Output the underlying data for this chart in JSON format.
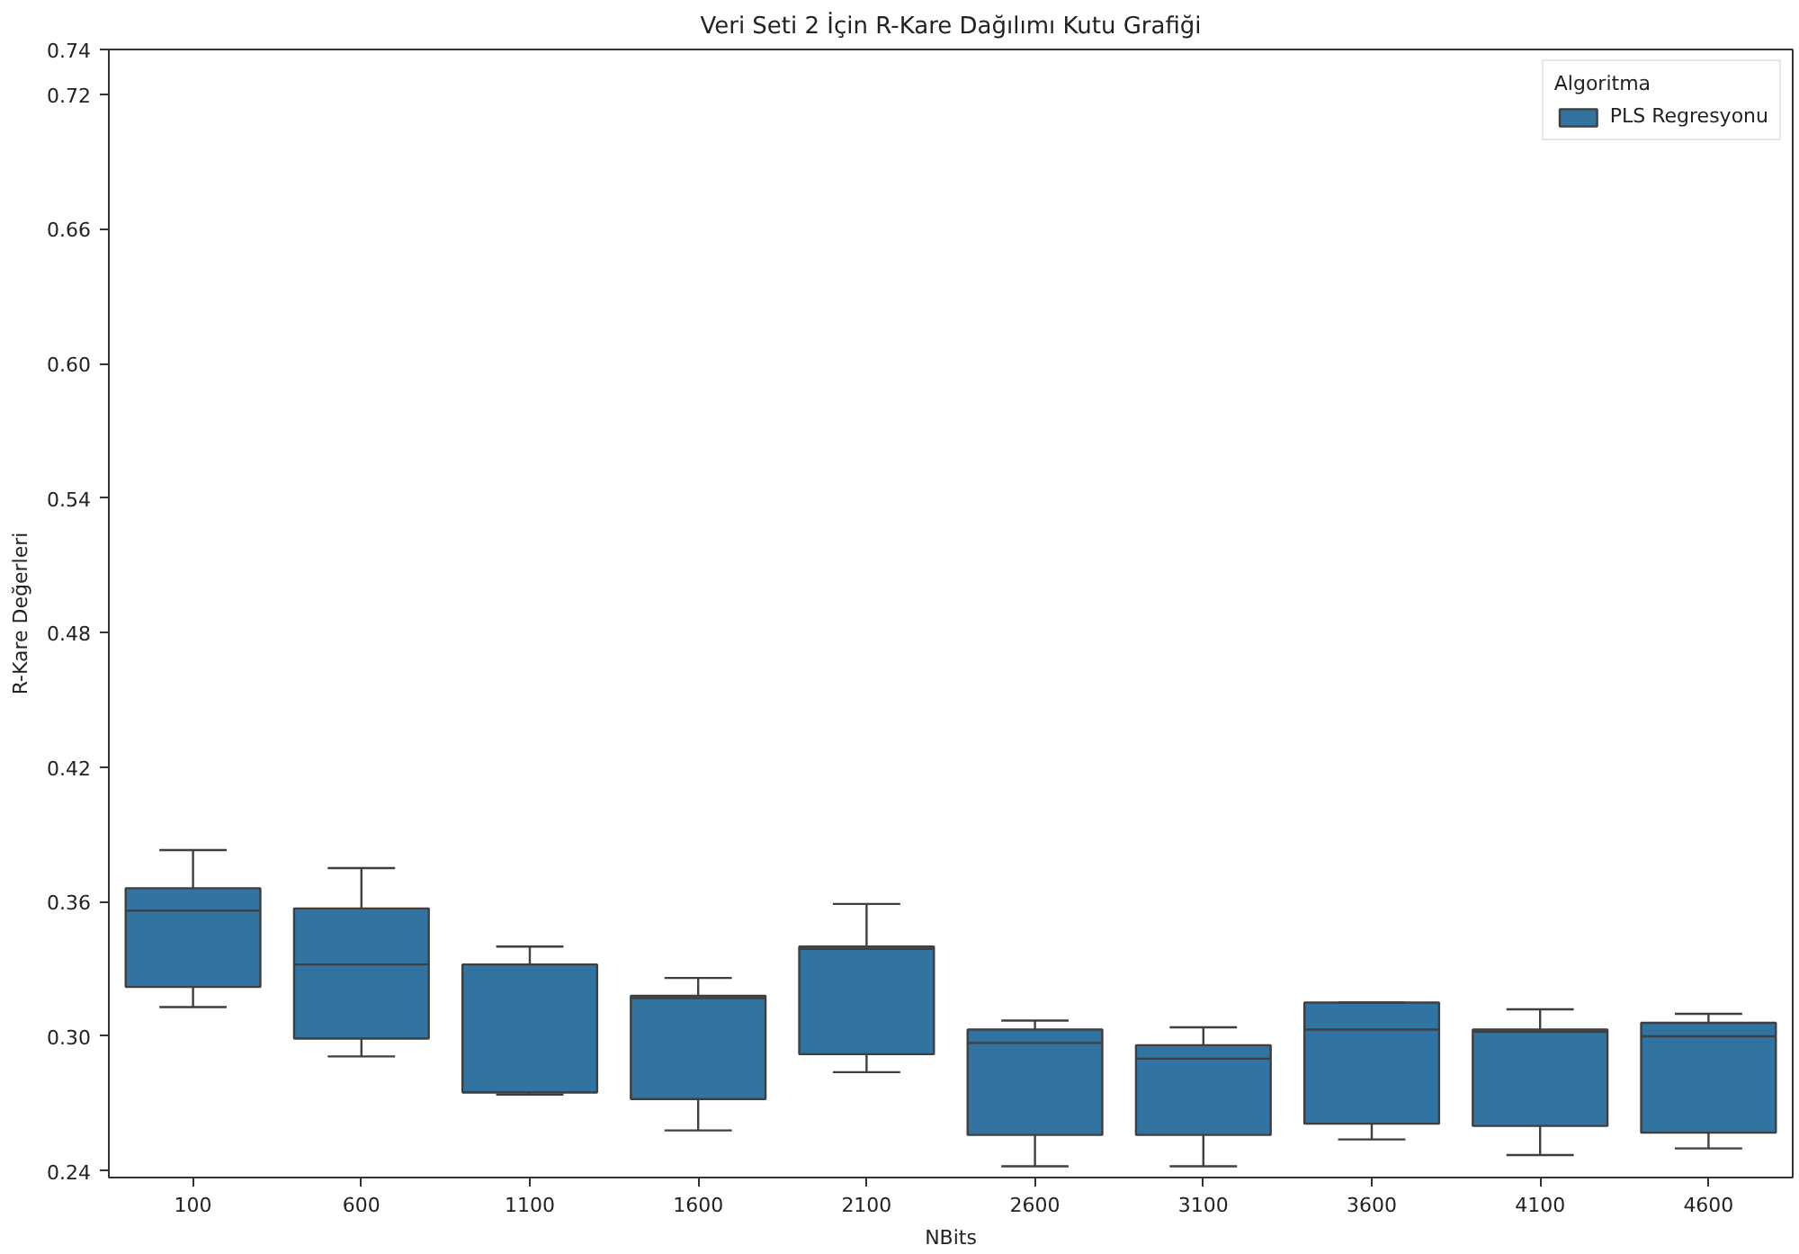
{
  "chart_data": {
    "type": "box",
    "title": "Veri Seti 2 İçin R-Kare Dağılımı Kutu Grafiği",
    "xlabel": "NBits",
    "ylabel": "R-Kare Değerleri",
    "categories": [
      "100",
      "600",
      "1100",
      "1600",
      "2100",
      "2600",
      "3100",
      "3600",
      "4100",
      "4600"
    ],
    "legend_title": "Algoritma",
    "legend": "top right",
    "grid": false,
    "series": [
      {
        "name": "PLS Regresyonu",
        "color": "#3274a1",
        "boxes": [
          {
            "low": 0.313,
            "q1": 0.322,
            "median": 0.356,
            "q3": 0.366,
            "high": 0.383
          },
          {
            "low": 0.291,
            "q1": 0.299,
            "median": 0.332,
            "q3": 0.357,
            "high": 0.375
          },
          {
            "low": 0.274,
            "q1": 0.275,
            "median": 0.275,
            "q3": 0.332,
            "high": 0.34
          },
          {
            "low": 0.258,
            "q1": 0.272,
            "median": 0.317,
            "q3": 0.318,
            "high": 0.326
          },
          {
            "low": 0.284,
            "q1": 0.292,
            "median": 0.339,
            "q3": 0.34,
            "high": 0.359
          },
          {
            "low": 0.242,
            "q1": 0.256,
            "median": 0.297,
            "q3": 0.303,
            "high": 0.307
          },
          {
            "low": 0.242,
            "q1": 0.256,
            "median": 0.29,
            "q3": 0.296,
            "high": 0.304
          },
          {
            "low": 0.254,
            "q1": 0.261,
            "median": 0.303,
            "q3": 0.315,
            "high": 0.315
          },
          {
            "low": 0.247,
            "q1": 0.26,
            "median": 0.302,
            "q3": 0.303,
            "high": 0.312
          },
          {
            "low": 0.25,
            "q1": 0.257,
            "median": 0.3,
            "q3": 0.306,
            "high": 0.31
          }
        ]
      }
    ],
    "ylim": [
      0.237,
      0.74
    ],
    "yticks": [
      0.24,
      {
        "value": 0.3,
        "label": "0.30"
      },
      0.36,
      0.42,
      0.48,
      0.54,
      {
        "value": 0.6,
        "label": "0.60"
      },
      0.66,
      0.72,
      0.74
    ]
  }
}
